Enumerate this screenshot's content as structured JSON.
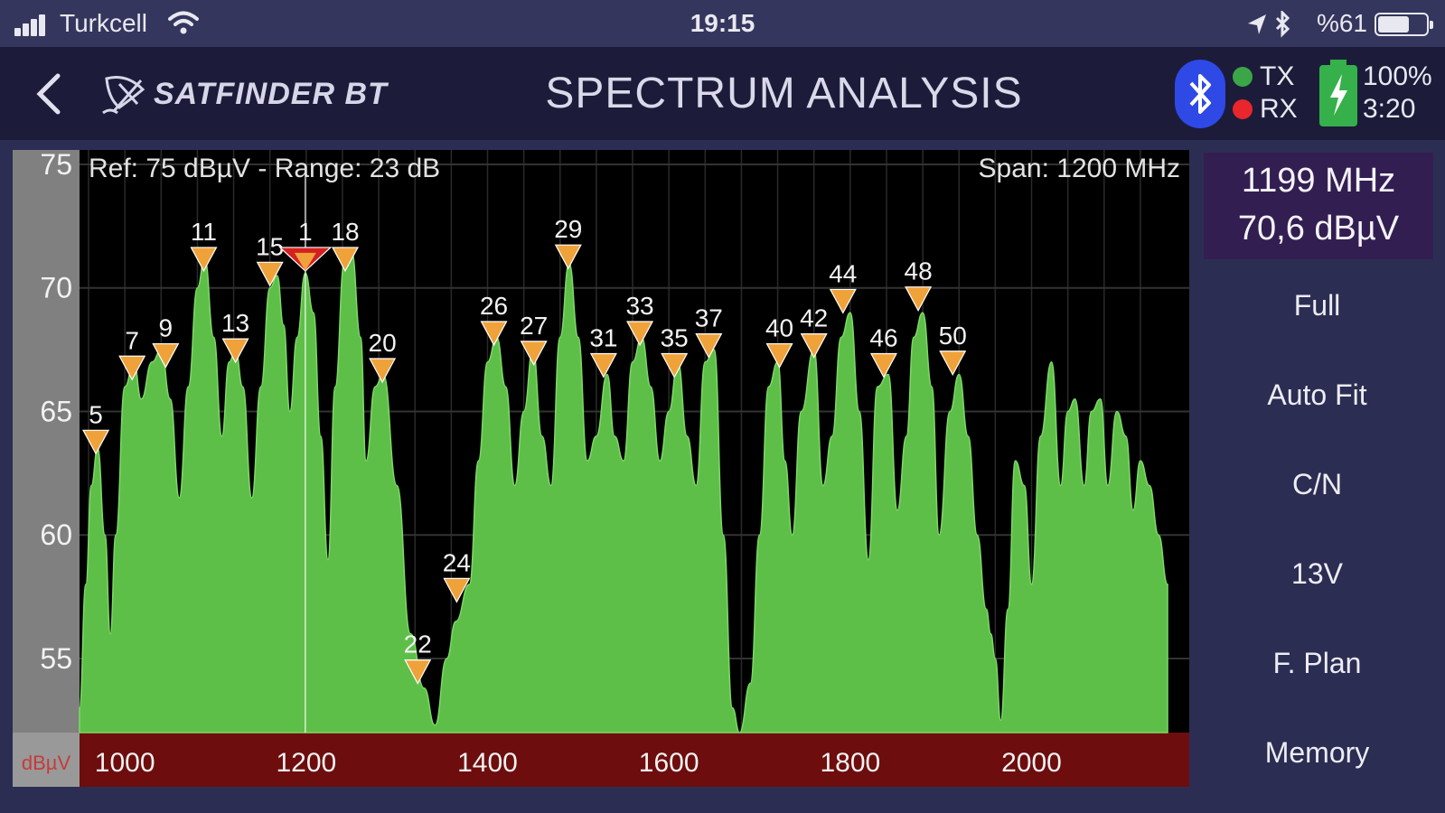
{
  "status_bar": {
    "carrier": "Turkcell",
    "time": "19:15",
    "battery_text": "%61",
    "icons": [
      "signal-icon",
      "wifi-icon",
      "location-arrow-icon",
      "bluetooth-icon",
      "battery-icon"
    ]
  },
  "header": {
    "logo_text": "SATFINDER BT",
    "title": "SPECTRUM ANALYSIS",
    "tx_label": "TX",
    "rx_label": "RX",
    "battery_pct": "100%",
    "battery_time": "3:20",
    "colors": {
      "tx": "#3aa647",
      "rx": "#e8262b",
      "bluetooth": "#2f49e6",
      "battery": "#36b04a"
    }
  },
  "chart": {
    "ref_label": "Ref: 75 dBµV - Range: 23 dB",
    "span_label": "Span: 1200 MHz",
    "unit_label": "dBµV"
  },
  "chart_data": {
    "type": "area",
    "xlim": [
      950,
      2150
    ],
    "ylim": [
      52,
      75
    ],
    "y_ticks": [
      75,
      70,
      65,
      60,
      55
    ],
    "x_ticks": [
      1000,
      1200,
      1400,
      1600,
      1800,
      2000
    ],
    "colors": {
      "fill": "#5ebf48",
      "marker": "#f0a23a",
      "selected_marker": "#d42020",
      "cursor": "#ffffff"
    },
    "cursor_x": 1199,
    "spectrum": [
      [
        950,
        53
      ],
      [
        957,
        58
      ],
      [
        963,
        62
      ],
      [
        970,
        63.5
      ],
      [
        978,
        60
      ],
      [
        984,
        56
      ],
      [
        990,
        60
      ],
      [
        1000,
        66
      ],
      [
        1010,
        67
      ],
      [
        1018,
        65.5
      ],
      [
        1030,
        67
      ],
      [
        1040,
        67.5
      ],
      [
        1050,
        65.5
      ],
      [
        1060,
        61.5
      ],
      [
        1070,
        66
      ],
      [
        1080,
        70
      ],
      [
        1088,
        71.2
      ],
      [
        1098,
        68
      ],
      [
        1107,
        64
      ],
      [
        1115,
        67
      ],
      [
        1122,
        67.5
      ],
      [
        1130,
        66
      ],
      [
        1140,
        61.5
      ],
      [
        1150,
        66
      ],
      [
        1160,
        70
      ],
      [
        1168,
        70.5
      ],
      [
        1175,
        68.5
      ],
      [
        1182,
        65
      ],
      [
        1190,
        68
      ],
      [
        1199,
        70.6
      ],
      [
        1208,
        69
      ],
      [
        1216,
        64
      ],
      [
        1224,
        59
      ],
      [
        1232,
        66
      ],
      [
        1242,
        71
      ],
      [
        1250,
        71.5
      ],
      [
        1260,
        68
      ],
      [
        1266,
        63
      ],
      [
        1276,
        66
      ],
      [
        1285,
        66.5
      ],
      [
        1300,
        62
      ],
      [
        1315,
        56
      ],
      [
        1330,
        53.8
      ],
      [
        1342,
        52.3
      ],
      [
        1355,
        55
      ],
      [
        1365,
        56.5
      ],
      [
        1380,
        58
      ],
      [
        1390,
        63
      ],
      [
        1400,
        67
      ],
      [
        1410,
        68
      ],
      [
        1420,
        66
      ],
      [
        1430,
        62
      ],
      [
        1440,
        65
      ],
      [
        1450,
        67.5
      ],
      [
        1460,
        64
      ],
      [
        1470,
        62
      ],
      [
        1480,
        68
      ],
      [
        1490,
        71
      ],
      [
        1500,
        68
      ],
      [
        1510,
        63
      ],
      [
        1520,
        64
      ],
      [
        1532,
        66.5
      ],
      [
        1540,
        64
      ],
      [
        1550,
        63
      ],
      [
        1560,
        67
      ],
      [
        1570,
        68
      ],
      [
        1580,
        66
      ],
      [
        1590,
        63
      ],
      [
        1600,
        65
      ],
      [
        1610,
        67
      ],
      [
        1620,
        64
      ],
      [
        1630,
        62
      ],
      [
        1640,
        67
      ],
      [
        1650,
        67.5
      ],
      [
        1660,
        60
      ],
      [
        1670,
        53
      ],
      [
        1678,
        52
      ],
      [
        1690,
        54
      ],
      [
        1700,
        60
      ],
      [
        1710,
        66
      ],
      [
        1720,
        67
      ],
      [
        1728,
        63
      ],
      [
        1736,
        60
      ],
      [
        1746,
        65
      ],
      [
        1760,
        67.5
      ],
      [
        1770,
        62
      ],
      [
        1780,
        64
      ],
      [
        1790,
        68
      ],
      [
        1800,
        69
      ],
      [
        1810,
        65
      ],
      [
        1820,
        59
      ],
      [
        1830,
        66
      ],
      [
        1842,
        66.5
      ],
      [
        1852,
        61
      ],
      [
        1862,
        64
      ],
      [
        1870,
        68
      ],
      [
        1880,
        69
      ],
      [
        1890,
        66
      ],
      [
        1898,
        60
      ],
      [
        1910,
        65
      ],
      [
        1920,
        66.5
      ],
      [
        1930,
        64
      ],
      [
        1940,
        60
      ],
      [
        1950,
        57
      ],
      [
        1955,
        56
      ],
      [
        1960,
        55
      ],
      [
        1966,
        52.5
      ],
      [
        1974,
        57
      ],
      [
        1982,
        63
      ],
      [
        1992,
        62
      ],
      [
        2000,
        58
      ],
      [
        2010,
        64
      ],
      [
        2022,
        67
      ],
      [
        2032,
        62
      ],
      [
        2040,
        65
      ],
      [
        2048,
        65.5
      ],
      [
        2058,
        62
      ],
      [
        2066,
        65
      ],
      [
        2076,
        65.5
      ],
      [
        2084,
        62
      ],
      [
        2094,
        65
      ],
      [
        2104,
        64
      ],
      [
        2112,
        61
      ],
      [
        2120,
        63
      ],
      [
        2130,
        62
      ],
      [
        2140,
        60
      ],
      [
        2150,
        58
      ]
    ],
    "markers": [
      {
        "label": "5",
        "x": 968,
        "y": 63.8
      },
      {
        "label": "7",
        "x": 1008,
        "y": 66.8
      },
      {
        "label": "9",
        "x": 1045,
        "y": 67.3
      },
      {
        "label": "11",
        "x": 1087,
        "y": 71.2
      },
      {
        "label": "13",
        "x": 1122,
        "y": 67.5
      },
      {
        "label": "15",
        "x": 1160,
        "y": 70.6
      },
      {
        "label": "1",
        "x": 1199,
        "y": 71.2,
        "selected": true
      },
      {
        "label": "18",
        "x": 1243,
        "y": 71.2
      },
      {
        "label": "20",
        "x": 1284,
        "y": 66.7
      },
      {
        "label": "22",
        "x": 1323,
        "y": 54.5
      },
      {
        "label": "24",
        "x": 1366,
        "y": 57.8
      },
      {
        "label": "26",
        "x": 1407,
        "y": 68.2
      },
      {
        "label": "27",
        "x": 1451,
        "y": 67.4
      },
      {
        "label": "29",
        "x": 1489,
        "y": 71.3
      },
      {
        "label": "31",
        "x": 1528,
        "y": 66.9
      },
      {
        "label": "33",
        "x": 1568,
        "y": 68.2
      },
      {
        "label": "35",
        "x": 1606,
        "y": 66.9
      },
      {
        "label": "37",
        "x": 1644,
        "y": 67.7
      },
      {
        "label": "40",
        "x": 1722,
        "y": 67.3
      },
      {
        "label": "42",
        "x": 1760,
        "y": 67.7
      },
      {
        "label": "44",
        "x": 1792,
        "y": 69.5
      },
      {
        "label": "46",
        "x": 1837,
        "y": 66.9
      },
      {
        "label": "48",
        "x": 1875,
        "y": 69.6
      },
      {
        "label": "50",
        "x": 1913,
        "y": 67.0
      }
    ]
  },
  "side_panel": {
    "readout_freq": "1199 MHz",
    "readout_level": "70,6 dBµV",
    "buttons": [
      "Full",
      "Auto Fit",
      "C/N",
      "13V",
      "F. Plan",
      "Memory"
    ]
  }
}
